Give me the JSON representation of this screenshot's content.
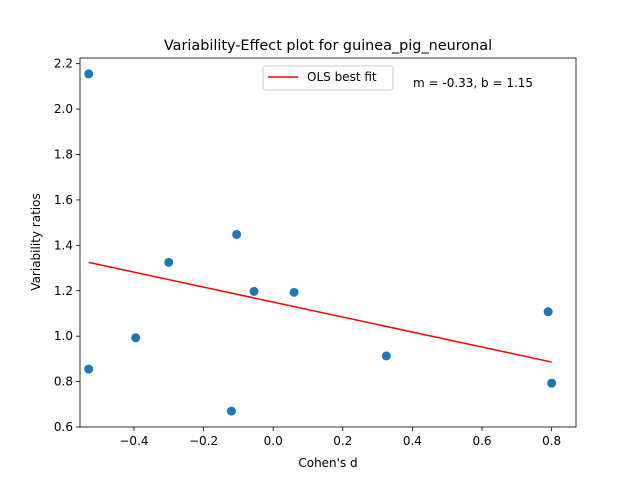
{
  "chart_data": {
    "type": "scatter",
    "title": "Variability-Effect plot for guinea_pig_neuronal",
    "xlabel": "Cohen's d",
    "ylabel": "Variability ratios",
    "xlim": [
      -0.555,
      0.87
    ],
    "ylim": [
      0.6,
      2.225
    ],
    "xticks": [
      -0.4,
      -0.2,
      0.0,
      0.2,
      0.4,
      0.6,
      0.8
    ],
    "xtick_labels": [
      "−0.4",
      "−0.2",
      "0.0",
      "0.2",
      "0.4",
      "0.6",
      "0.8"
    ],
    "yticks": [
      0.6,
      0.8,
      1.0,
      1.2,
      1.4,
      1.6,
      1.8,
      2.0,
      2.2
    ],
    "ytick_labels": [
      "0.6",
      "0.8",
      "1.0",
      "1.2",
      "1.4",
      "1.6",
      "1.8",
      "2.0",
      "2.2"
    ],
    "grid": false,
    "legend_position": "top-center",
    "series": [
      {
        "kind": "points",
        "color": "#1f77b4",
        "points": [
          {
            "x": -0.53,
            "y": 2.155
          },
          {
            "x": -0.53,
            "y": 0.855
          },
          {
            "x": -0.395,
            "y": 0.993
          },
          {
            "x": -0.3,
            "y": 1.325
          },
          {
            "x": -0.105,
            "y": 1.448
          },
          {
            "x": -0.12,
            "y": 0.67
          },
          {
            "x": -0.055,
            "y": 1.197
          },
          {
            "x": 0.06,
            "y": 1.193
          },
          {
            "x": 0.325,
            "y": 0.913
          },
          {
            "x": 0.79,
            "y": 1.108
          },
          {
            "x": 0.8,
            "y": 0.793
          }
        ]
      },
      {
        "kind": "line",
        "name": "OLS best fit",
        "color": "#ff0000",
        "slope": -0.33,
        "intercept": 1.15,
        "x_range": [
          -0.53,
          0.8
        ]
      }
    ],
    "annotation": "m = -0.33, b = 1.15"
  }
}
